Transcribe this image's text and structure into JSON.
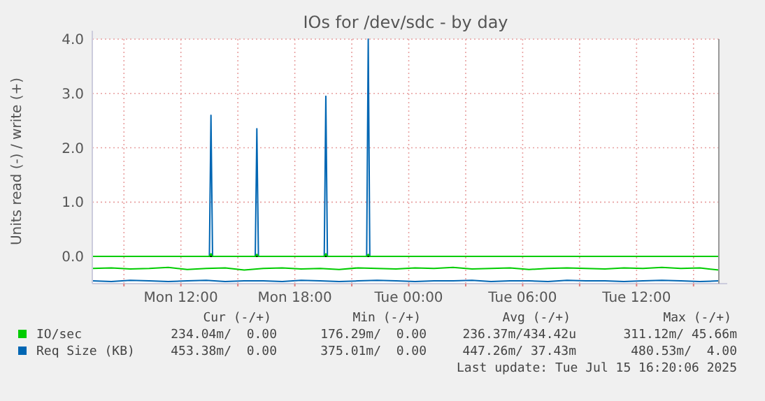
{
  "chart_data": {
    "type": "line",
    "title": "IOs for /dev/sdc - by day",
    "ylabel": "Units read (-) / write (+)",
    "xlim": [
      "2025-07-14T07:20",
      "2025-07-15T16:20"
    ],
    "xticks": [
      {
        "value": "2025-07-14T09:00",
        "label": null
      },
      {
        "value": "2025-07-14T12:00",
        "label": "Mon 12:00"
      },
      {
        "value": "2025-07-14T15:00",
        "label": null
      },
      {
        "value": "2025-07-14T18:00",
        "label": "Mon 18:00"
      },
      {
        "value": "2025-07-14T21:00",
        "label": null
      },
      {
        "value": "2025-07-15T00:00",
        "label": "Tue 00:00"
      },
      {
        "value": "2025-07-15T03:00",
        "label": null
      },
      {
        "value": "2025-07-15T06:00",
        "label": "Tue 06:00"
      },
      {
        "value": "2025-07-15T09:00",
        "label": null
      },
      {
        "value": "2025-07-15T12:00",
        "label": "Tue 12:00"
      },
      {
        "value": "2025-07-15T15:00",
        "label": null
      }
    ],
    "ylim": [
      -0.5,
      4.0
    ],
    "yticks": [
      {
        "value": 0,
        "label": "0.0"
      },
      {
        "value": 1,
        "label": "1.0"
      },
      {
        "value": 2,
        "label": "2.0"
      },
      {
        "value": 3,
        "label": "3.0"
      },
      {
        "value": 4,
        "label": "4.0"
      }
    ],
    "grid": true,
    "legend": "bottom",
    "marker": "none",
    "line_style": "solid",
    "ref_lines": [
      {
        "axis": "y",
        "value": 0,
        "color": "#000000"
      }
    ],
    "x": [
      "2025-07-14T07:20",
      "2025-07-14T08:20",
      "2025-07-14T09:20",
      "2025-07-14T10:20",
      "2025-07-14T11:20",
      "2025-07-14T12:20",
      "2025-07-14T13:20",
      "2025-07-14T14:20",
      "2025-07-14T15:20",
      "2025-07-14T16:20",
      "2025-07-14T17:20",
      "2025-07-14T18:20",
      "2025-07-14T19:20",
      "2025-07-14T20:20",
      "2025-07-14T21:20",
      "2025-07-14T22:20",
      "2025-07-14T23:20",
      "2025-07-15T00:20",
      "2025-07-15T01:20",
      "2025-07-15T02:20",
      "2025-07-15T03:20",
      "2025-07-15T04:20",
      "2025-07-15T05:20",
      "2025-07-15T06:20",
      "2025-07-15T07:20",
      "2025-07-15T08:20",
      "2025-07-15T09:20",
      "2025-07-15T10:20",
      "2025-07-15T11:20",
      "2025-07-15T12:20",
      "2025-07-15T13:20",
      "2025-07-15T14:20",
      "2025-07-15T15:20",
      "2025-07-15T16:20"
    ],
    "series": [
      {
        "name": "IO/sec",
        "color": "#00cc00",
        "values": [
          -0.22,
          -0.21,
          -0.23,
          -0.22,
          -0.2,
          -0.24,
          -0.22,
          -0.21,
          -0.25,
          -0.22,
          -0.21,
          -0.23,
          -0.22,
          -0.24,
          -0.21,
          -0.22,
          -0.23,
          -0.21,
          -0.22,
          -0.2,
          -0.23,
          -0.22,
          -0.21,
          -0.24,
          -0.22,
          -0.21,
          -0.22,
          -0.23,
          -0.21,
          -0.22,
          -0.2,
          -0.22,
          -0.21,
          -0.25
        ]
      },
      {
        "color": "#00cc00",
        "x": [
          "2025-07-14T07:20",
          "2025-07-14T13:30",
          "2025-07-14T13:35",
          "2025-07-14T13:40",
          "2025-07-14T15:55",
          "2025-07-14T16:00",
          "2025-07-14T16:05",
          "2025-07-14T19:33",
          "2025-07-14T19:38",
          "2025-07-14T19:43",
          "2025-07-14T21:47",
          "2025-07-14T21:52",
          "2025-07-14T21:57",
          "2025-07-15T16:20"
        ],
        "values": [
          0,
          0,
          0.05,
          0,
          0,
          0.04,
          0,
          0,
          0.05,
          0,
          0,
          0.04,
          0,
          0
        ]
      },
      {
        "name": "Req Size (KB)",
        "color": "#0066b3",
        "values": [
          -0.45,
          -0.46,
          -0.44,
          -0.45,
          -0.46,
          -0.45,
          -0.44,
          -0.46,
          -0.45,
          -0.45,
          -0.46,
          -0.44,
          -0.45,
          -0.46,
          -0.45,
          -0.44,
          -0.45,
          -0.46,
          -0.45,
          -0.45,
          -0.44,
          -0.46,
          -0.45,
          -0.45,
          -0.46,
          -0.44,
          -0.45,
          -0.45,
          -0.46,
          -0.45,
          -0.44,
          -0.45,
          -0.46,
          -0.45
        ]
      },
      {
        "color": "#0066b3",
        "x": [
          "2025-07-14T07:20",
          "2025-07-14T13:30",
          "2025-07-14T13:35",
          "2025-07-14T13:40",
          "2025-07-14T15:55",
          "2025-07-14T16:00",
          "2025-07-14T16:05",
          "2025-07-14T19:33",
          "2025-07-14T19:38",
          "2025-07-14T19:43",
          "2025-07-14T21:47",
          "2025-07-14T21:52",
          "2025-07-14T21:57",
          "2025-07-15T16:20"
        ],
        "values": [
          0,
          0,
          2.6,
          0,
          0,
          2.35,
          0,
          0,
          2.95,
          0,
          0,
          4.0,
          0,
          0
        ]
      }
    ],
    "annotations": [
      "Cur (-/+)",
      "Min (-/+)",
      "Avg (-/+)",
      "Max (-/+)",
      "234.04m/  0.00",
      "176.29m/  0.00",
      "236.37m/434.42u",
      "311.12m/ 45.66m",
      "453.38m/  0.00",
      "375.01m/  0.00",
      "447.26m/ 37.43m",
      "480.53m/  4.00",
      "Last update: Tue Jul 15 16:20:06 2025"
    ]
  }
}
